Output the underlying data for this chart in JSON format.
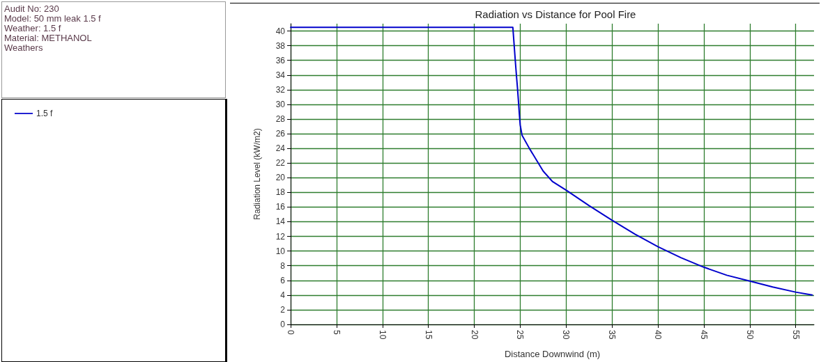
{
  "chart_data": {
    "type": "line",
    "title": "Radiation vs Distance for Pool Fire",
    "xlabel": "Distance Downwind (m)",
    "ylabel": "Radiation Level (kW/m2)",
    "annotations": [
      "Audit No: 230",
      "Model: 50 mm leak 1.5 f",
      "Weather: 1.5 f",
      "Material: METHANOL",
      "Weathers"
    ],
    "series": [
      {
        "name": "1.5 f",
        "color": "#0000cc",
        "x": [
          0,
          24.2,
          24.3,
          24.4,
          24.5,
          24.6,
          24.7,
          24.8,
          24.9,
          25.0,
          25.2,
          26,
          27.5,
          28.5,
          30,
          32.5,
          35,
          37.5,
          40,
          42.5,
          45,
          47.5,
          50,
          52.5,
          55,
          56.8
        ],
        "values": [
          40.5,
          40.5,
          38.8,
          37.1,
          35.4,
          33.8,
          32.3,
          30.6,
          28.8,
          27.2,
          25.8,
          24.0,
          20.9,
          19.5,
          18.3,
          16.2,
          14.2,
          12.3,
          10.6,
          9.1,
          7.8,
          6.7,
          5.9,
          5.1,
          4.4,
          4.0
        ]
      }
    ],
    "xlim": [
      0,
      57
    ],
    "xticks": [
      0,
      5,
      10,
      15,
      20,
      25,
      30,
      35,
      40,
      45,
      50,
      55
    ],
    "ylim": [
      0,
      41
    ],
    "yticks": [
      0,
      2,
      4,
      6,
      8,
      10,
      12,
      14,
      16,
      18,
      20,
      22,
      24,
      26,
      28,
      30,
      32,
      34,
      36,
      38,
      40
    ],
    "grid": true,
    "legend": "left",
    "marker": "none",
    "line_style": "solid"
  }
}
